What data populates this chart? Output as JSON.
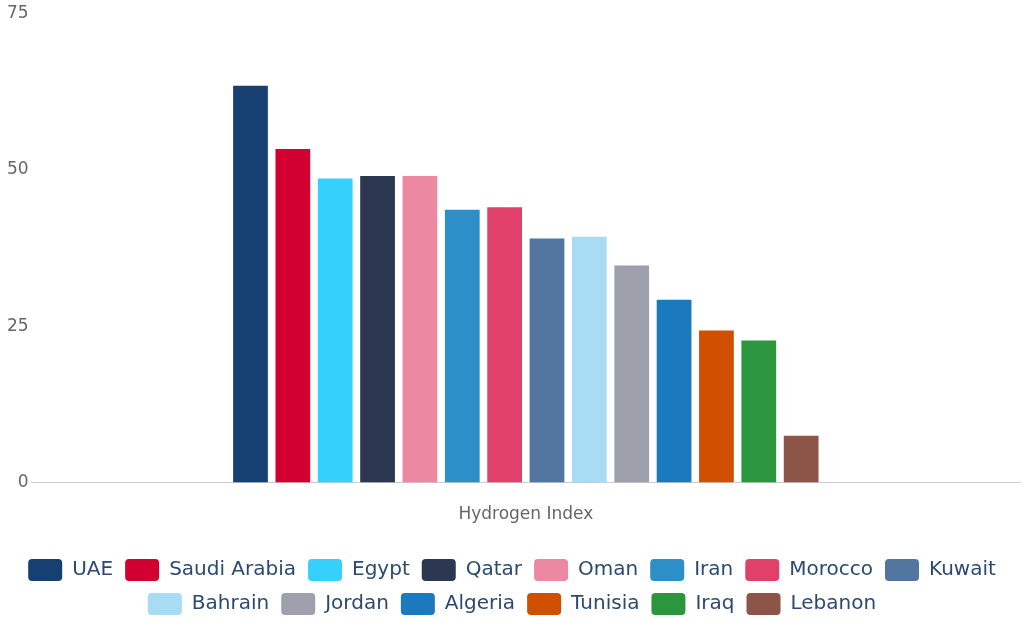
{
  "chart_data": {
    "type": "bar",
    "categories": [
      "Hydrogen Index"
    ],
    "ylim": [
      0,
      75
    ],
    "yticks": [
      0,
      25,
      50,
      75
    ],
    "grid": false,
    "legend": "bottom",
    "series": [
      {
        "name": "UAE",
        "color": "#163f72",
        "values": [
          63.4
        ]
      },
      {
        "name": "Saudi Arabia",
        "color": "#d20030",
        "values": [
          53.3
        ]
      },
      {
        "name": "Egypt",
        "color": "#35d0fb",
        "values": [
          48.6
        ]
      },
      {
        "name": "Qatar",
        "color": "#2c3752",
        "values": [
          49.0
        ]
      },
      {
        "name": "Oman",
        "color": "#ec88a1",
        "values": [
          49.0
        ]
      },
      {
        "name": "Iran",
        "color": "#2c8fc7",
        "values": [
          43.6
        ]
      },
      {
        "name": "Morocco",
        "color": "#e04069",
        "values": [
          44.0
        ]
      },
      {
        "name": "Kuwait",
        "color": "#52769f",
        "values": [
          39.0
        ]
      },
      {
        "name": "Bahrain",
        "color": "#a8dcf4",
        "values": [
          39.3
        ]
      },
      {
        "name": "Jordan",
        "color": "#9ea0ab",
        "values": [
          34.7
        ]
      },
      {
        "name": "Algeria",
        "color": "#1a7abd",
        "values": [
          29.2
        ]
      },
      {
        "name": "Tunisia",
        "color": "#cf5000",
        "values": [
          24.3
        ]
      },
      {
        "name": "Iraq",
        "color": "#2c963f",
        "values": [
          22.7
        ]
      },
      {
        "name": "Lebanon",
        "color": "#8d5548",
        "values": [
          7.5
        ]
      }
    ]
  }
}
